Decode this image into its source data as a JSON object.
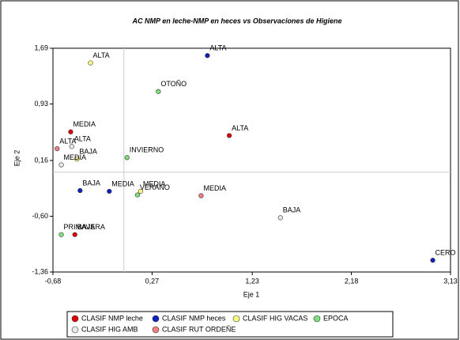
{
  "chart_data": {
    "type": "scatter",
    "title": "AC NMP en leche-NMP en heces vs Observaciones de Higiene",
    "x_label": "Eje 1",
    "y_label": "Eje 2",
    "xlim": [
      -0.68,
      3.13
    ],
    "xticks": [
      {
        "value": -0.68,
        "label": "-0,68"
      },
      {
        "value": 0.27,
        "label": "0,27"
      },
      {
        "value": 1.23,
        "label": "1,23"
      },
      {
        "value": 2.18,
        "label": "2,18"
      },
      {
        "value": 3.13,
        "label": "3,13"
      }
    ],
    "ylim": [
      -1.36,
      1.69
    ],
    "yticks": [
      {
        "value": -1.36,
        "label": "-1,36"
      },
      {
        "value": -0.6,
        "label": "-0,60"
      },
      {
        "value": 0.16,
        "label": "0,16"
      },
      {
        "value": 0.93,
        "label": "0,93"
      },
      {
        "value": 1.69,
        "label": "1,69"
      }
    ],
    "series": [
      {
        "name": "CLASIF NMP leche",
        "color": "#e00000",
        "labels": [
          "MEDIA",
          "ALTA",
          "BAJA"
        ],
        "x": [
          -0.51,
          1.01,
          -0.47
        ],
        "values": [
          0.55,
          0.5,
          -0.85
        ]
      },
      {
        "name": "CLASIF NMP heces",
        "color": "#1020c0",
        "labels": [
          "ALTA",
          "BAJA",
          "MEDIA",
          "CERO"
        ],
        "x": [
          0.8,
          -0.42,
          -0.14,
          2.96
        ],
        "values": [
          1.59,
          -0.25,
          -0.26,
          -1.2
        ]
      },
      {
        "name": "CLASIF HIG VACAS",
        "color": "#ffff80",
        "labels": [
          "ALTA",
          "BAJA",
          "MEDIA"
        ],
        "x": [
          -0.32,
          -0.45,
          0.16
        ],
        "values": [
          1.49,
          0.18,
          -0.26
        ]
      },
      {
        "name": "EPOCA",
        "color": "#80e080",
        "labels": [
          "OTOÑO",
          "INVIERNO",
          "VERANO",
          "PRIMAVERA"
        ],
        "x": [
          0.33,
          0.03,
          0.13,
          -0.6
        ],
        "values": [
          1.1,
          0.2,
          -0.31,
          -0.85
        ]
      },
      {
        "name": "CLASIF HIG AMB",
        "color": "#e8e8e8",
        "labels": [
          "ALTA",
          "MEDIA",
          "BAJA"
        ],
        "x": [
          -0.5,
          -0.6,
          1.5
        ],
        "values": [
          0.35,
          0.1,
          -0.62
        ]
      },
      {
        "name": "CLASIF RUT ORDEÑE",
        "color": "#f08080",
        "labels": [
          "ALTA",
          "MEDIA"
        ],
        "x": [
          -0.64,
          0.74
        ],
        "values": [
          0.32,
          -0.32
        ]
      }
    ]
  }
}
